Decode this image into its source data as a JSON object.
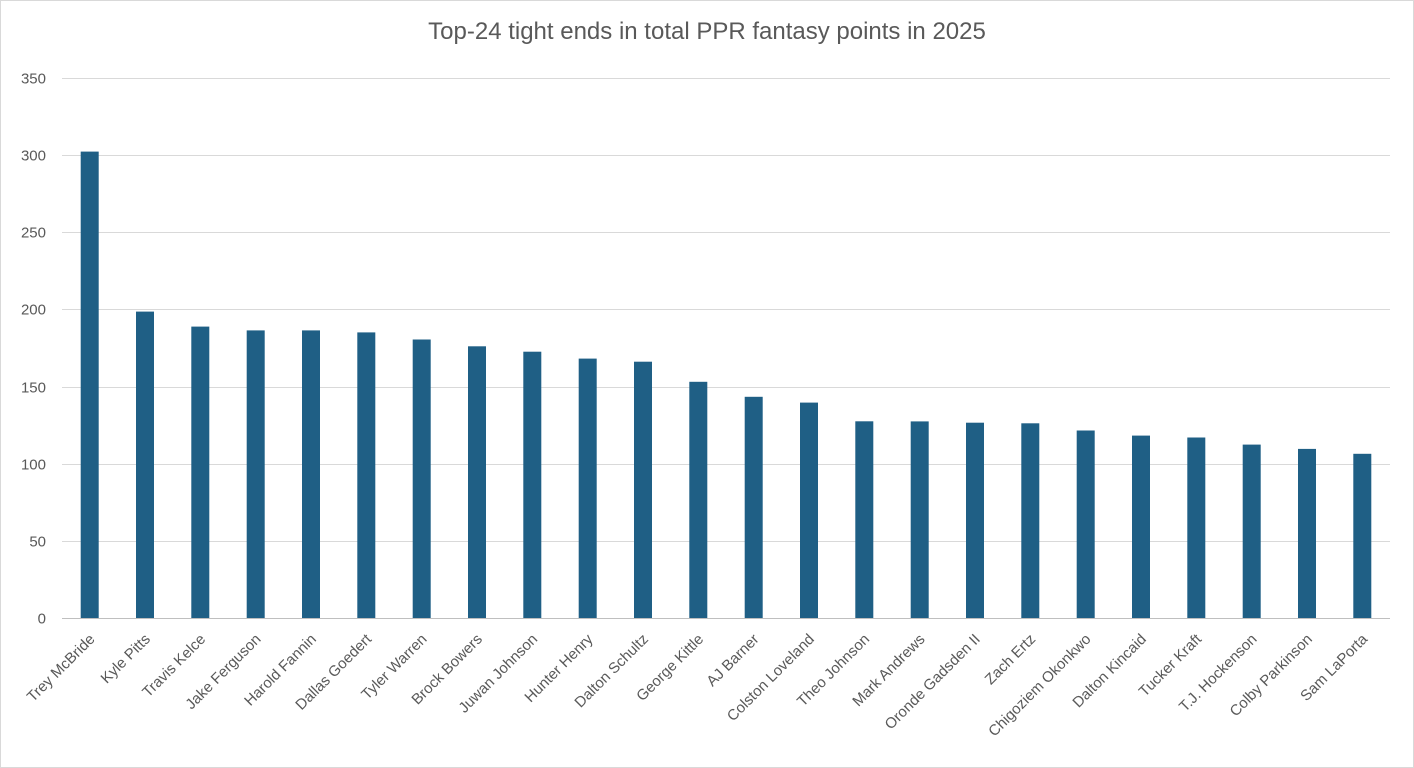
{
  "chart_data": {
    "type": "bar",
    "title": "Top-24 tight ends in total PPR fantasy points in 2025",
    "xlabel": "",
    "ylabel": "",
    "ylim": [
      0,
      350
    ],
    "yticks": [
      0,
      50,
      100,
      150,
      200,
      250,
      300,
      350
    ],
    "grid": true,
    "legend": "none",
    "bar_color": "#1f5f85",
    "categories": [
      "Trey McBride",
      "Kyle Pitts",
      "Travis Kelce",
      "Jake Ferguson",
      "Harold Fannin",
      "Dallas Goedert",
      "Tyler Warren",
      "Brock Bowers",
      "Juwan Johnson",
      "Hunter Henry",
      "Dalton Schultz",
      "George Kittle",
      "AJ Barner",
      "Colston Loveland",
      "Theo Johnson",
      "Mark Andrews",
      "Oronde Gadsden II",
      "Zach Ertz",
      "Chigoziem Okonkwo",
      "Dalton Kincaid",
      "Tucker Kraft",
      "T.J. Hockenson",
      "Colby Parkinson",
      "Sam LaPorta"
    ],
    "values": [
      302.3,
      198.6,
      188.9,
      186.4,
      186.4,
      185.1,
      180.5,
      176.1,
      172.6,
      168.1,
      166.1,
      153.1,
      143.4,
      139.6,
      127.5,
      127.4,
      126.6,
      126.2,
      121.5,
      118.2,
      117.0,
      112.4,
      109.6,
      106.4
    ]
  }
}
